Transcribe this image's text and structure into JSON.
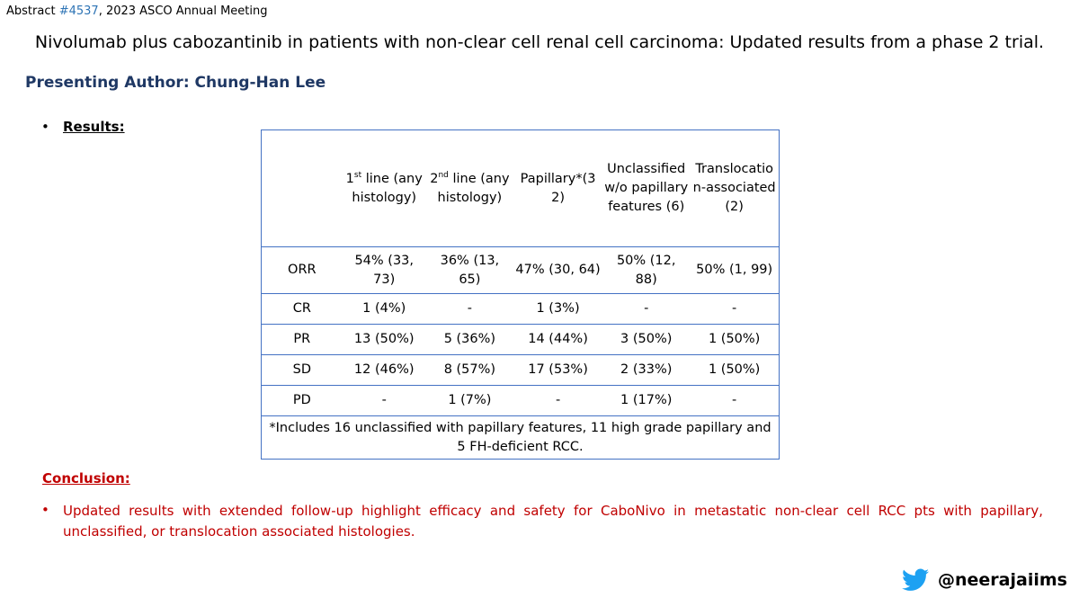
{
  "header": {
    "abstract_prefix": "Abstract ",
    "abstract_number": "#4537",
    "abstract_suffix": ", 2023 ASCO Annual Meeting",
    "title": "Nivolumab plus cabozantinib in patients with non-clear cell renal cell carcinoma: Updated results from a phase 2 trial.",
    "author": "Presenting Author: Chung-Han Lee"
  },
  "results": {
    "bullet": "•",
    "label": "Results:",
    "columns": {
      "c1_pre": "1",
      "c1_sup": "st",
      "c1_post": " line (any histology)",
      "c2_pre": "2",
      "c2_sup": "nd",
      "c2_post": " line (any histology)",
      "c3": "Papillary*(32)",
      "c4": "Unclassified w/o papillary features (6)",
      "c5": "Translocation-associated (2)"
    },
    "rows": [
      {
        "label": "ORR",
        "v1": "54% (33, 73)",
        "v2": "36% (13, 65)",
        "v3": "47% (30, 64)",
        "v4": "50% (12, 88)",
        "v5": "50% (1, 99)"
      },
      {
        "label": "CR",
        "v1": "1 (4%)",
        "v2": "-",
        "v3": "1 (3%)",
        "v4": "-",
        "v5": "-"
      },
      {
        "label": "PR",
        "v1": "13 (50%)",
        "v2": "5 (36%)",
        "v3": "14 (44%)",
        "v4": "3 (50%)",
        "v5": "1 (50%)"
      },
      {
        "label": "SD",
        "v1": "12 (46%)",
        "v2": "8 (57%)",
        "v3": "17 (53%)",
        "v4": "2 (33%)",
        "v5": "1 (50%)"
      },
      {
        "label": "PD",
        "v1": "-",
        "v2": "1 (7%)",
        "v3": "-",
        "v4": "1 (17%)",
        "v5": "-"
      }
    ],
    "footnote": "*Includes 16 unclassified with papillary features, 11 high grade papillary and 5 FH-deficient RCC."
  },
  "conclusion": {
    "label": "Conclusion:",
    "bullet": "•",
    "text": "Updated results with extended follow-up highlight efficacy and safety for CaboNivo in metastatic non-clear cell RCC pts with papillary, unclassified, or translocation associated histologies."
  },
  "social": {
    "icon": "twitter-bird-icon",
    "icon_color": "#1da1f2",
    "handle": "@neerajaiims"
  },
  "colors": {
    "author": "#1f3864",
    "table_border": "#4472c4",
    "conclusion": "#c00000",
    "abstract_link": "#2e74b5"
  }
}
